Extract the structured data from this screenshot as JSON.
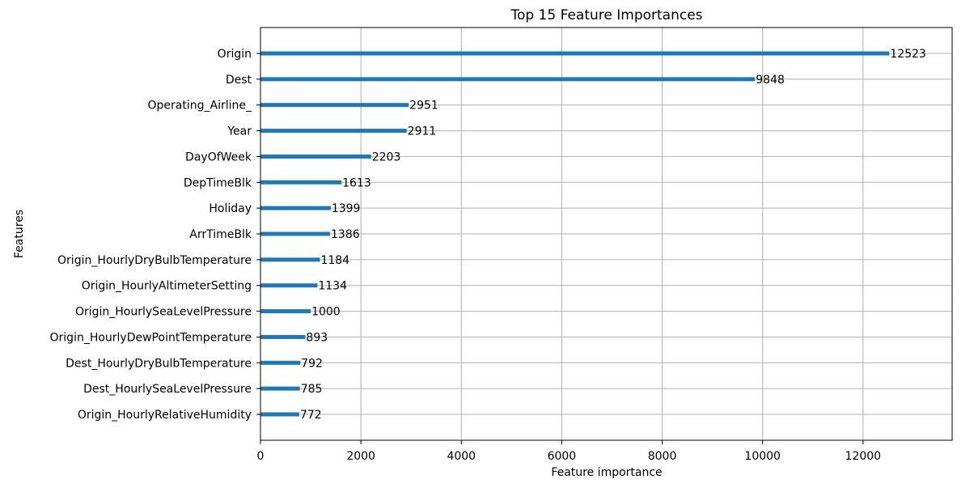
{
  "chart_data": {
    "type": "bar",
    "orientation": "horizontal",
    "title": "Top 15 Feature Importances",
    "xlabel": "Feature importance",
    "ylabel": "Features",
    "xlim": [
      0,
      13775
    ],
    "xticks": [
      0,
      2000,
      4000,
      6000,
      8000,
      10000,
      12000
    ],
    "grid": true,
    "bar_color": "#1f77b4",
    "categories": [
      "Origin",
      "Dest",
      "Operating_Airline_",
      "Year",
      "DayOfWeek",
      "DepTimeBlk",
      "Holiday",
      "ArrTimeBlk",
      "Origin_HourlyDryBulbTemperature",
      "Origin_HourlyAltimeterSetting",
      "Origin_HourlySeaLevelPressure",
      "Origin_HourlyDewPointTemperature",
      "Dest_HourlyDryBulbTemperature",
      "Dest_HourlySeaLevelPressure",
      "Origin_HourlyRelativeHumidity"
    ],
    "values": [
      12523,
      9848,
      2951,
      2911,
      2203,
      1613,
      1399,
      1386,
      1184,
      1134,
      1000,
      893,
      792,
      785,
      772
    ]
  }
}
